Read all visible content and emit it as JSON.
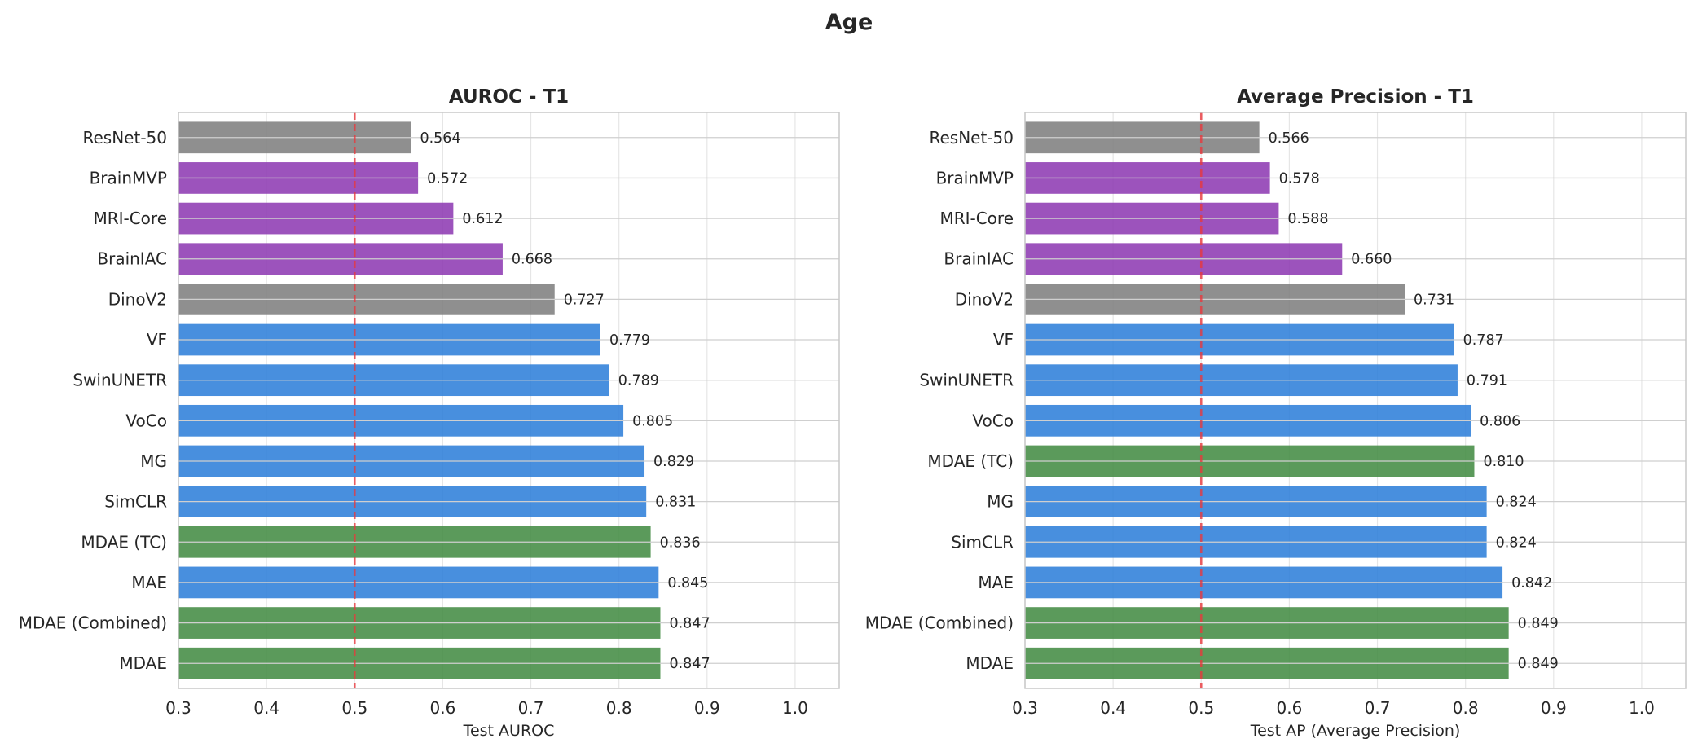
{
  "figure": {
    "title": "Age"
  },
  "colors": {
    "gray": "#7f7f7f",
    "purple": "#8e3bb3",
    "blue": "#2f80d9",
    "green": "#448c44",
    "reference_line": "#e8383d",
    "grid": "#e6e6e6",
    "frame": "#c8c8c8"
  },
  "chart_data": [
    {
      "type": "bar",
      "orientation": "horizontal",
      "title": "AUROC - T1",
      "xlabel": "Test AUROC",
      "ylabel": "",
      "xlim": [
        0.3,
        1.05
      ],
      "xticks": [
        "0.3",
        "0.4",
        "0.5",
        "0.6",
        "0.7",
        "0.8",
        "0.9",
        "1.0"
      ],
      "reference_line": 0.5,
      "grid": true,
      "categories": [
        "ResNet-50",
        "BrainMVP",
        "MRI-Core",
        "BrainIAC",
        "DinoV2",
        "VF",
        "SwinUNETR",
        "VoCo",
        "MG",
        "SimCLR",
        "MDAE (TC)",
        "MAE",
        "MDAE (Combined)",
        "MDAE"
      ],
      "values": [
        0.564,
        0.572,
        0.612,
        0.668,
        0.727,
        0.779,
        0.789,
        0.805,
        0.829,
        0.831,
        0.836,
        0.845,
        0.847,
        0.847
      ],
      "value_labels": [
        "0.564",
        "0.572",
        "0.612",
        "0.668",
        "0.727",
        "0.779",
        "0.789",
        "0.805",
        "0.829",
        "0.831",
        "0.836",
        "0.845",
        "0.847",
        "0.847"
      ],
      "bar_colors": [
        "gray",
        "purple",
        "purple",
        "purple",
        "gray",
        "blue",
        "blue",
        "blue",
        "blue",
        "blue",
        "green",
        "blue",
        "green",
        "green"
      ]
    },
    {
      "type": "bar",
      "orientation": "horizontal",
      "title": "Average Precision - T1",
      "xlabel": "Test AP (Average Precision)",
      "ylabel": "",
      "xlim": [
        0.3,
        1.05
      ],
      "xticks": [
        "0.3",
        "0.4",
        "0.5",
        "0.6",
        "0.7",
        "0.8",
        "0.9",
        "1.0"
      ],
      "reference_line": 0.5,
      "grid": true,
      "categories": [
        "ResNet-50",
        "BrainMVP",
        "MRI-Core",
        "BrainIAC",
        "DinoV2",
        "VF",
        "SwinUNETR",
        "VoCo",
        "MDAE (TC)",
        "MG",
        "SimCLR",
        "MAE",
        "MDAE (Combined)",
        "MDAE"
      ],
      "values": [
        0.566,
        0.578,
        0.588,
        0.66,
        0.731,
        0.787,
        0.791,
        0.806,
        0.81,
        0.824,
        0.824,
        0.842,
        0.849,
        0.849
      ],
      "value_labels": [
        "0.566",
        "0.578",
        "0.588",
        "0.660",
        "0.731",
        "0.787",
        "0.791",
        "0.806",
        "0.810",
        "0.824",
        "0.824",
        "0.842",
        "0.849",
        "0.849"
      ],
      "bar_colors": [
        "gray",
        "purple",
        "purple",
        "purple",
        "gray",
        "blue",
        "blue",
        "blue",
        "green",
        "blue",
        "blue",
        "blue",
        "green",
        "green"
      ]
    }
  ]
}
